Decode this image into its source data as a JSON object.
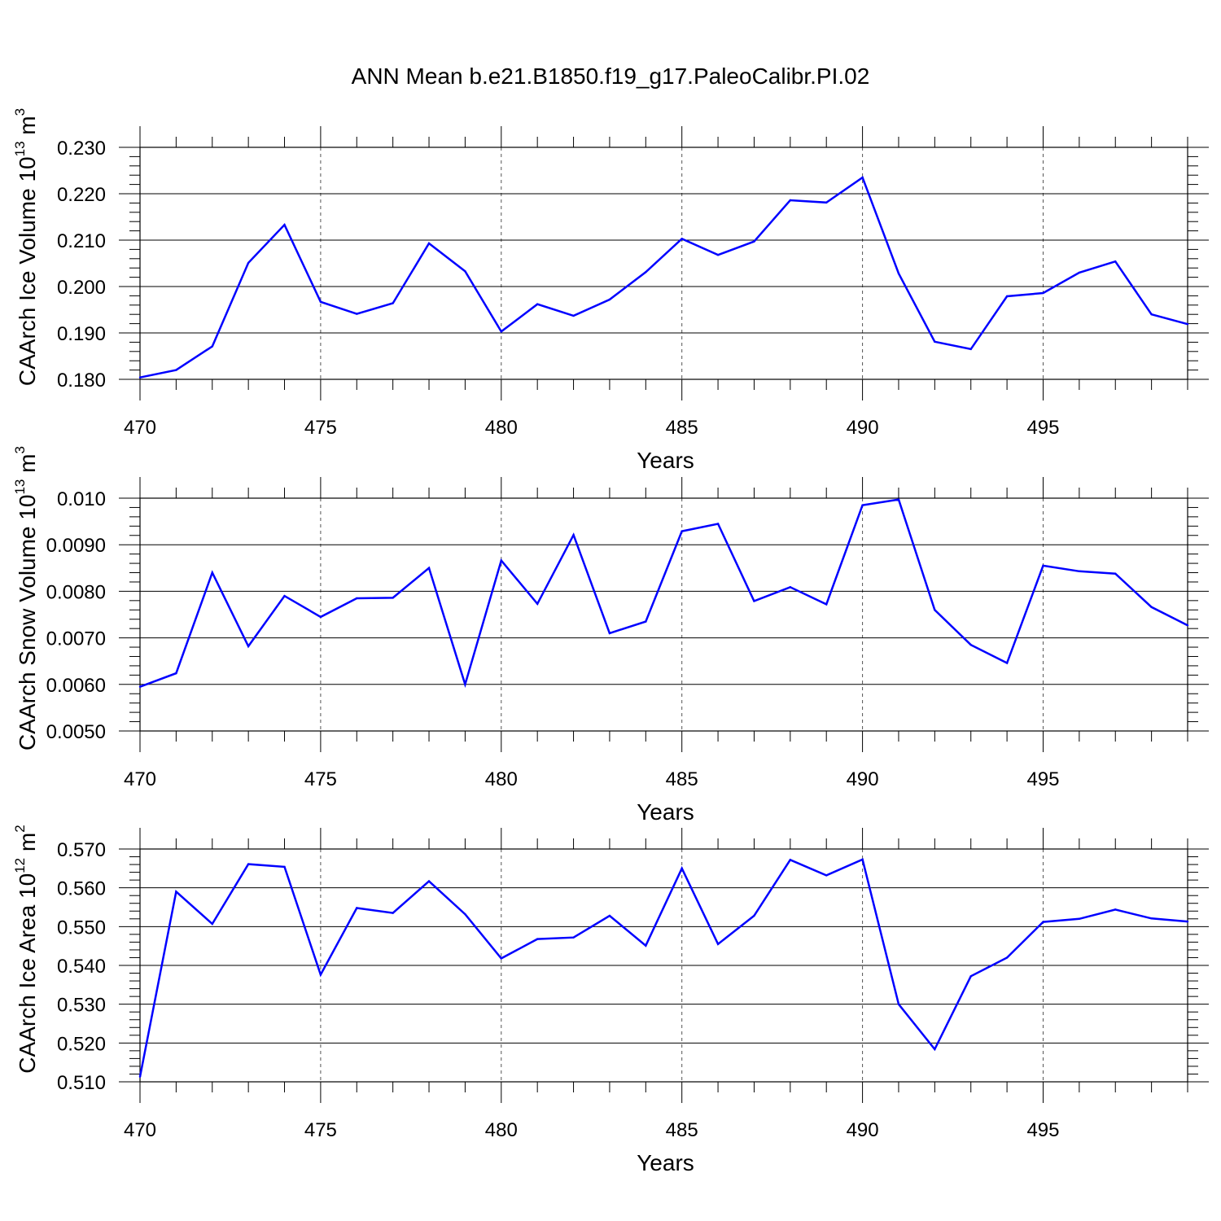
{
  "title": "ANN Mean b.e21.B1850.f19_g17.PaleoCalibr.PI.02",
  "chart_data": [
    {
      "type": "line",
      "ylabel": "CAArch Ice Volume",
      "yunit": "10",
      "yunit_exp": "13",
      "yunit_tail": " m",
      "yunit_tail_exp": "3",
      "xlabel": "Years",
      "xlim": [
        470,
        499
      ],
      "ylim": [
        0.18,
        0.23
      ],
      "xticks": [
        470,
        475,
        480,
        485,
        490,
        495
      ],
      "yticks": [
        "0.180",
        "0.190",
        "0.200",
        "0.210",
        "0.220",
        "0.230"
      ],
      "color": "#0000ff",
      "grid": "vertical dashed",
      "x": [
        470,
        471,
        472,
        473,
        474,
        475,
        476,
        477,
        478,
        479,
        480,
        481,
        482,
        483,
        484,
        485,
        486,
        487,
        488,
        489,
        490,
        491,
        492,
        493,
        494,
        495,
        496,
        497,
        498,
        499
      ],
      "values": [
        0.1804,
        0.182,
        0.1871,
        0.2051,
        0.2133,
        0.1967,
        0.1941,
        0.1964,
        0.2093,
        0.2033,
        0.1903,
        0.1962,
        0.1937,
        0.1972,
        0.2031,
        0.2103,
        0.2068,
        0.2097,
        0.2186,
        0.2181,
        0.2235,
        0.2028,
        0.1881,
        0.1865,
        0.1979,
        0.1986,
        0.203,
        0.2054,
        0.194,
        0.1919
      ]
    },
    {
      "type": "line",
      "ylabel": "CAArch Snow Volume",
      "yunit": "10",
      "yunit_exp": "13",
      "yunit_tail": " m",
      "yunit_tail_exp": "3",
      "xlabel": "Years",
      "xlim": [
        470,
        499
      ],
      "ylim": [
        0.005,
        0.01
      ],
      "xticks": [
        470,
        475,
        480,
        485,
        490,
        495
      ],
      "yticks": [
        "0.0050",
        "0.0060",
        "0.0070",
        "0.0080",
        "0.0090",
        "0.010"
      ],
      "color": "#0000ff",
      "grid": "vertical dashed",
      "x": [
        470,
        471,
        472,
        473,
        474,
        475,
        476,
        477,
        478,
        479,
        480,
        481,
        482,
        483,
        484,
        485,
        486,
        487,
        488,
        489,
        490,
        491,
        492,
        493,
        494,
        495,
        496,
        497,
        498,
        499
      ],
      "values": [
        0.00595,
        0.00624,
        0.0084,
        0.00682,
        0.0079,
        0.00745,
        0.00785,
        0.00786,
        0.0085,
        0.006,
        0.00866,
        0.00773,
        0.00921,
        0.0071,
        0.00735,
        0.00929,
        0.00945,
        0.00779,
        0.00809,
        0.00772,
        0.00985,
        0.00997,
        0.0076,
        0.00685,
        0.00646,
        0.00855,
        0.00843,
        0.00838,
        0.00766,
        0.00727
      ]
    },
    {
      "type": "line",
      "ylabel": "CAArch Ice Area",
      "yunit": "10",
      "yunit_exp": "12",
      "yunit_tail": " m",
      "yunit_tail_exp": "2",
      "xlabel": "Years",
      "xlim": [
        470,
        499
      ],
      "ylim": [
        0.51,
        0.57
      ],
      "xticks": [
        470,
        475,
        480,
        485,
        490,
        495
      ],
      "yticks": [
        "0.510",
        "0.520",
        "0.530",
        "0.540",
        "0.550",
        "0.560",
        "0.570"
      ],
      "color": "#0000ff",
      "grid": "vertical dashed",
      "x": [
        470,
        471,
        472,
        473,
        474,
        475,
        476,
        477,
        478,
        479,
        480,
        481,
        482,
        483,
        484,
        485,
        486,
        487,
        488,
        489,
        490,
        491,
        492,
        493,
        494,
        495,
        496,
        497,
        498,
        499
      ],
      "values": [
        0.5113,
        0.559,
        0.5507,
        0.5661,
        0.5654,
        0.5376,
        0.5548,
        0.5535,
        0.5617,
        0.5532,
        0.5418,
        0.5468,
        0.5472,
        0.5528,
        0.5451,
        0.565,
        0.5455,
        0.5528,
        0.5672,
        0.5632,
        0.5673,
        0.53,
        0.5184,
        0.5372,
        0.542,
        0.5512,
        0.552,
        0.5544,
        0.5521,
        0.5513
      ]
    }
  ]
}
